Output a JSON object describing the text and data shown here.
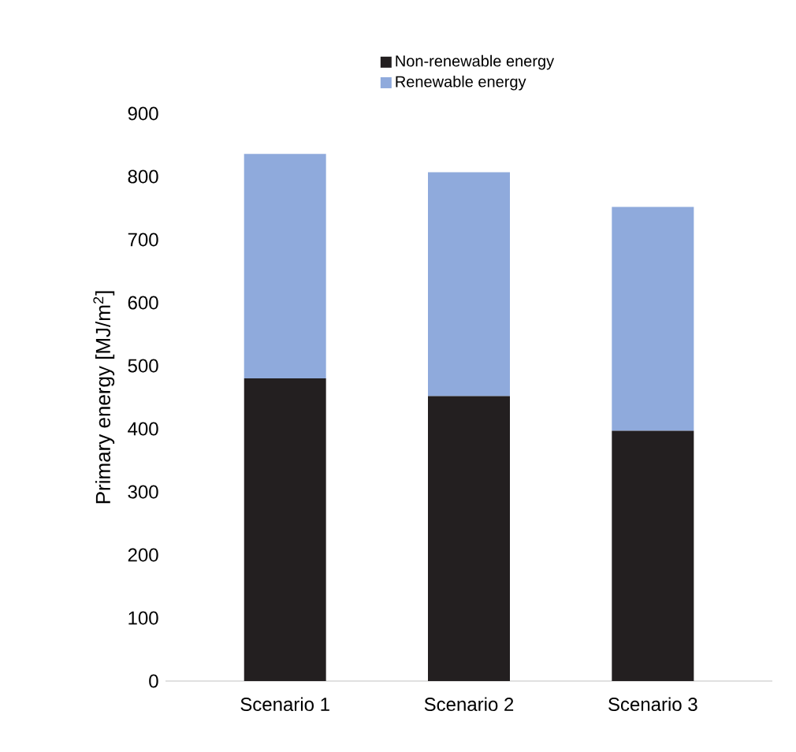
{
  "chart_data": {
    "type": "bar",
    "stacked": true,
    "ylabel": "Primary energy [MJ/m$^{2}$]",
    "categories": [
      "Scenario 1",
      "Scenario 2",
      "Scenario 3"
    ],
    "series": [
      {
        "name": "Non-renewable energy",
        "color": "#231f20",
        "values": [
          480,
          452,
          397
        ]
      },
      {
        "name": "Renewable energy",
        "color": "#8faadc",
        "values": [
          356,
          355,
          355
        ]
      }
    ],
    "ylim": [
      0,
      900
    ],
    "yticks": [
      0,
      100,
      200,
      300,
      400,
      500,
      600,
      700,
      800,
      900
    ],
    "legend": "top",
    "grid": false
  }
}
